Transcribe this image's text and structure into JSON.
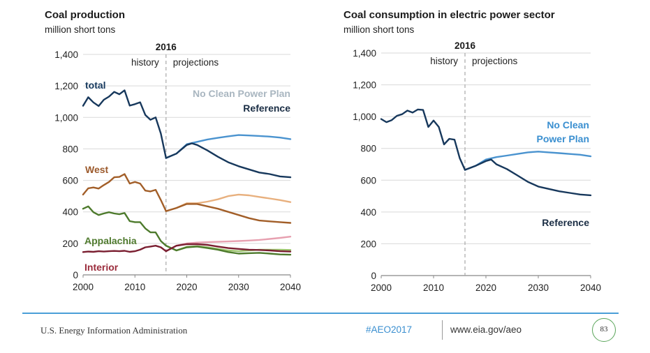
{
  "chart_data": [
    {
      "type": "line",
      "title": "Coal production",
      "subtitle": "million short tons",
      "xlim": [
        2000,
        2040
      ],
      "ylim": [
        0,
        1400
      ],
      "x_ticks": [
        "2000",
        "2010",
        "2020",
        "2030",
        "2040"
      ],
      "y_ticks": [
        "0",
        "200",
        "400",
        "600",
        "800",
        "1,000",
        "1,200",
        "1,400"
      ],
      "divider": {
        "year": "2016",
        "left_label": "history",
        "right_label": "projections"
      },
      "annotations": [
        {
          "text": "No Clean Power Plan",
          "color": "#a9b6c0"
        },
        {
          "text": "Reference",
          "color": "#1a2d44"
        }
      ],
      "series": [
        {
          "name": "total",
          "label_color": "#16395e",
          "color": "#17385c",
          "scenario": "history",
          "x": [
            2000,
            2001,
            2002,
            2003,
            2004,
            2005,
            2006,
            2007,
            2008,
            2009,
            2010,
            2011,
            2012,
            2013,
            2014,
            2015,
            2016
          ],
          "y": [
            1074,
            1128,
            1095,
            1072,
            1112,
            1132,
            1162,
            1147,
            1172,
            1075,
            1084,
            1096,
            1016,
            985,
            1000,
            897,
            742
          ]
        },
        {
          "name": "",
          "color": "#17385c",
          "scenario": "Reference",
          "x": [
            2016,
            2018,
            2020,
            2021,
            2022,
            2024,
            2026,
            2028,
            2030,
            2032,
            2034,
            2036,
            2038,
            2040
          ],
          "y": [
            742,
            770,
            825,
            835,
            825,
            790,
            750,
            715,
            690,
            670,
            650,
            640,
            625,
            620
          ]
        },
        {
          "name": "",
          "color": "#4a93cf",
          "scenario": "No Clean Power Plan",
          "x": [
            2016,
            2018,
            2020,
            2022,
            2024,
            2026,
            2028,
            2030,
            2032,
            2034,
            2036,
            2038,
            2040
          ],
          "y": [
            742,
            770,
            830,
            845,
            860,
            870,
            880,
            888,
            885,
            882,
            878,
            872,
            862
          ]
        },
        {
          "name": "West",
          "label_color": "#9c5a2c",
          "color": "#a25e28",
          "scenario": "history",
          "x": [
            2000,
            2001,
            2002,
            2003,
            2004,
            2005,
            2006,
            2007,
            2008,
            2009,
            2010,
            2011,
            2012,
            2013,
            2014,
            2015,
            2016
          ],
          "y": [
            510,
            550,
            555,
            548,
            570,
            590,
            620,
            622,
            640,
            580,
            590,
            580,
            535,
            530,
            540,
            475,
            405
          ]
        },
        {
          "name": "",
          "color": "#a25e28",
          "scenario": "Reference",
          "x": [
            2016,
            2018,
            2020,
            2022,
            2024,
            2026,
            2028,
            2030,
            2032,
            2034,
            2036,
            2038,
            2040
          ],
          "y": [
            405,
            425,
            450,
            450,
            435,
            420,
            400,
            380,
            360,
            345,
            340,
            335,
            330
          ]
        },
        {
          "name": "",
          "color": "#e8b07e",
          "scenario": "No Clean Power Plan",
          "x": [
            2016,
            2018,
            2020,
            2022,
            2024,
            2026,
            2028,
            2030,
            2032,
            2034,
            2036,
            2038,
            2040
          ],
          "y": [
            405,
            425,
            455,
            455,
            465,
            480,
            500,
            510,
            505,
            495,
            485,
            475,
            462
          ]
        },
        {
          "name": "Appalachia",
          "label_color": "#4f7a2e",
          "color": "#4d7a2c",
          "scenario": "history",
          "x": [
            2000,
            2001,
            2002,
            2003,
            2004,
            2005,
            2006,
            2007,
            2008,
            2009,
            2010,
            2011,
            2012,
            2013,
            2014,
            2015,
            2016
          ],
          "y": [
            420,
            435,
            398,
            380,
            390,
            398,
            390,
            385,
            393,
            341,
            335,
            335,
            295,
            270,
            270,
            215,
            185
          ]
        },
        {
          "name": "",
          "color": "#4d7a2c",
          "scenario": "Reference",
          "x": [
            2016,
            2018,
            2020,
            2022,
            2024,
            2026,
            2028,
            2030,
            2032,
            2034,
            2036,
            2038,
            2040
          ],
          "y": [
            185,
            155,
            175,
            180,
            170,
            160,
            145,
            135,
            138,
            140,
            135,
            130,
            128
          ]
        },
        {
          "name": "",
          "color": "#9cc46e",
          "scenario": "No Clean Power Plan",
          "x": [
            2016,
            2018,
            2020,
            2022,
            2024,
            2026,
            2028,
            2030,
            2032,
            2034,
            2036,
            2038,
            2040
          ],
          "y": [
            185,
            155,
            178,
            182,
            175,
            165,
            155,
            150,
            155,
            160,
            160,
            160,
            158
          ]
        },
        {
          "name": "Interior",
          "label_color": "#9b2c3c",
          "color": "#7a1e30",
          "scenario": "history",
          "x": [
            2000,
            2001,
            2002,
            2003,
            2004,
            2005,
            2006,
            2007,
            2008,
            2009,
            2010,
            2011,
            2012,
            2013,
            2014,
            2015,
            2016
          ],
          "y": [
            145,
            148,
            146,
            150,
            148,
            150,
            152,
            150,
            153,
            146,
            150,
            160,
            175,
            180,
            185,
            175,
            150
          ]
        },
        {
          "name": "",
          "color": "#7a1e30",
          "scenario": "Reference",
          "x": [
            2016,
            2018,
            2020,
            2022,
            2024,
            2026,
            2028,
            2030,
            2032,
            2034,
            2036,
            2038,
            2040
          ],
          "y": [
            150,
            185,
            195,
            195,
            190,
            180,
            170,
            165,
            160,
            158,
            155,
            150,
            148
          ]
        },
        {
          "name": "",
          "color": "#e7a0b0",
          "scenario": "No Clean Power Plan",
          "x": [
            2016,
            2018,
            2020,
            2022,
            2024,
            2026,
            2028,
            2030,
            2032,
            2034,
            2036,
            2038,
            2040
          ],
          "y": [
            150,
            185,
            200,
            205,
            208,
            210,
            212,
            215,
            218,
            222,
            228,
            235,
            243
          ]
        }
      ]
    },
    {
      "type": "line",
      "title": "Coal consumption in electric power sector",
      "subtitle": "million short tons",
      "xlim": [
        2000,
        2040
      ],
      "ylim": [
        0,
        1400
      ],
      "x_ticks": [
        "2000",
        "2010",
        "2020",
        "2030",
        "2040"
      ],
      "y_ticks": [
        "0",
        "200",
        "400",
        "600",
        "800",
        "1,000",
        "1,200",
        "1,400"
      ],
      "divider": {
        "year": "2016",
        "left_label": "history",
        "right_label": "projections"
      },
      "annotations": [
        {
          "text": "No Clean",
          "color": "#3a8fd0"
        },
        {
          "text": "Power Plan",
          "color": "#3a8fd0"
        },
        {
          "text": "Reference",
          "color": "#1a2d44"
        }
      ],
      "series": [
        {
          "name": "",
          "color": "#17385c",
          "scenario": "history",
          "x": [
            2000,
            2001,
            2002,
            2003,
            2004,
            2005,
            2006,
            2007,
            2008,
            2009,
            2010,
            2011,
            2012,
            2013,
            2014,
            2015,
            2016
          ],
          "y": [
            985,
            965,
            978,
            1005,
            1015,
            1038,
            1025,
            1045,
            1042,
            935,
            975,
            935,
            825,
            860,
            855,
            738,
            665
          ]
        },
        {
          "name": "",
          "color": "#17385c",
          "scenario": "Reference",
          "x": [
            2016,
            2018,
            2020,
            2021,
            2022,
            2024,
            2026,
            2028,
            2030,
            2032,
            2034,
            2036,
            2038,
            2040
          ],
          "y": [
            665,
            690,
            720,
            730,
            700,
            670,
            630,
            590,
            560,
            545,
            530,
            520,
            510,
            505
          ]
        },
        {
          "name": "",
          "color": "#4a93cf",
          "scenario": "No Clean Power Plan",
          "x": [
            2016,
            2018,
            2020,
            2022,
            2024,
            2026,
            2028,
            2030,
            2032,
            2034,
            2036,
            2038,
            2040
          ],
          "y": [
            665,
            690,
            730,
            745,
            755,
            765,
            775,
            780,
            775,
            770,
            765,
            760,
            750
          ]
        }
      ]
    }
  ],
  "footer": {
    "agency": "U.S. Energy Information Administration",
    "hashtag": "#AEO2017",
    "url": "www.eia.gov/aeo",
    "page": "83"
  },
  "colors": {
    "accent": "#4a9fd8",
    "page_circle": "#5aa55a"
  }
}
